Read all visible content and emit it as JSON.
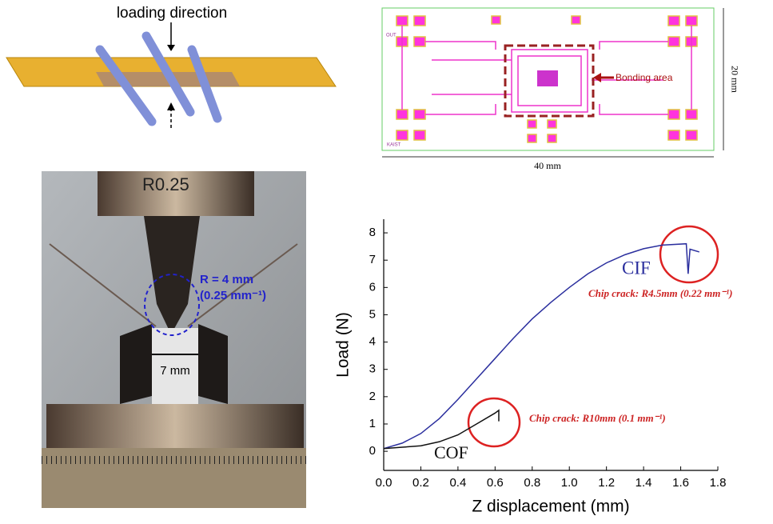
{
  "diagram": {
    "label": "loading direction"
  },
  "layout": {
    "bonding_label": "Bonding area",
    "height_label": "20 mm",
    "width_label": "40 mm",
    "logo": "KAIST",
    "out_label": "OUT"
  },
  "photo": {
    "tool_label": "R0.25",
    "radius_label": "R = 4 mm",
    "curvature_label": "(0.25 mm⁻¹)",
    "gap_label": "7 mm"
  },
  "chart_data": {
    "type": "line",
    "xlabel": "Z displacement (mm)",
    "ylabel": "Load (N)",
    "xlim": [
      0,
      1.8
    ],
    "ylim": [
      -0.7,
      8.5
    ],
    "xticks": [
      {
        "value": 0,
        "label": "0.0"
      },
      0.2,
      0.4,
      0.6,
      0.8,
      {
        "value": 1,
        "label": "1.0"
      },
      1.2,
      1.4,
      1.6,
      1.8
    ],
    "yticks": [
      0,
      1,
      2,
      3,
      4,
      5,
      6,
      7,
      8
    ],
    "series": [
      {
        "name": "CIF",
        "color": "#2b2f9e",
        "x": [
          0,
          0.1,
          0.2,
          0.3,
          0.4,
          0.5,
          0.6,
          0.7,
          0.8,
          0.9,
          1.0,
          1.1,
          1.2,
          1.3,
          1.4,
          1.5,
          1.63,
          1.64,
          1.65,
          1.7
        ],
        "values": [
          0.1,
          0.3,
          0.65,
          1.2,
          1.9,
          2.65,
          3.4,
          4.15,
          4.85,
          5.45,
          6.0,
          6.5,
          6.9,
          7.2,
          7.42,
          7.55,
          7.6,
          6.5,
          7.4,
          7.3
        ]
      },
      {
        "name": "COF",
        "color": "#111111",
        "x": [
          0,
          0.1,
          0.2,
          0.3,
          0.4,
          0.5,
          0.6,
          0.62,
          0.62
        ],
        "values": [
          0.1,
          0.15,
          0.2,
          0.35,
          0.6,
          1.0,
          1.4,
          1.5,
          1.1
        ]
      }
    ],
    "annotations": [
      "Chip crack: R4.5mm (0.22 mm⁻¹)",
      "Chip crack: R10mm (0.1 mm⁻¹)"
    ]
  }
}
